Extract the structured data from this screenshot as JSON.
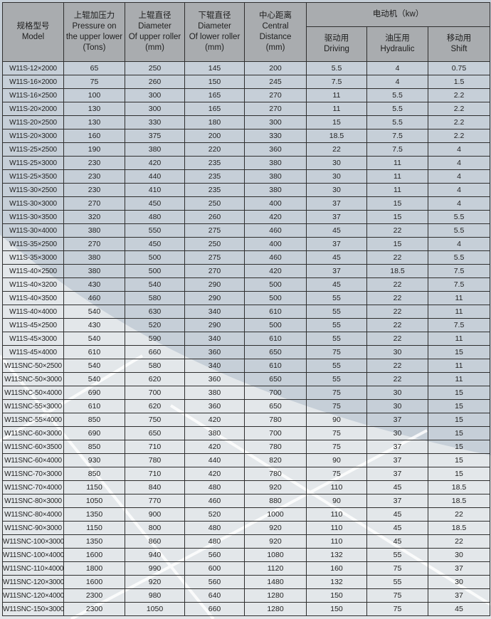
{
  "header": {
    "model": [
      "规格型号",
      "Model"
    ],
    "pressure": [
      "上辊加压力",
      "Pressure on",
      "the upper lower",
      "(Tons)"
    ],
    "upper": [
      "上辊直径",
      "Diameter",
      "Of upper roller",
      "(mm)"
    ],
    "lower": [
      "下辊直径",
      "Diameter",
      "Of lower roller",
      "(mm)"
    ],
    "center": [
      "中心距离",
      "Central",
      "Distance",
      "(mm)"
    ],
    "motor": "电动机（kw）",
    "driving": [
      "驱动用",
      "Driving"
    ],
    "hydraulic": [
      "油压用",
      "Hydraulic"
    ],
    "shift": [
      "移动用",
      "Shift"
    ]
  },
  "colors": {
    "header_bg": "#a9acaf",
    "body_bg": "#c6cfd8",
    "light_bg": "#e3e7ea",
    "border": "#2e2e2e"
  },
  "rows": [
    [
      "W11S-12×2000",
      "65",
      "250",
      "145",
      "200",
      "5.5",
      "4",
      "0.75"
    ],
    [
      "W11S-16×2000",
      "75",
      "260",
      "150",
      "245",
      "7.5",
      "4",
      "1.5"
    ],
    [
      "W11S-16×2500",
      "100",
      "300",
      "165",
      "270",
      "11",
      "5.5",
      "2.2"
    ],
    [
      "W11S-20×2000",
      "130",
      "300",
      "165",
      "270",
      "11",
      "5.5",
      "2.2"
    ],
    [
      "W11S-20×2500",
      "130",
      "330",
      "180",
      "300",
      "15",
      "5.5",
      "2.2"
    ],
    [
      "W11S-20×3000",
      "160",
      "375",
      "200",
      "330",
      "18.5",
      "7.5",
      "2.2"
    ],
    [
      "W11S-25×2500",
      "190",
      "380",
      "220",
      "360",
      "22",
      "7.5",
      "4"
    ],
    [
      "W11S-25×3000",
      "230",
      "420",
      "235",
      "380",
      "30",
      "11",
      "4"
    ],
    [
      "W11S-25×3500",
      "230",
      "440",
      "235",
      "380",
      "30",
      "11",
      "4"
    ],
    [
      "W11S-30×2500",
      "230",
      "410",
      "235",
      "380",
      "30",
      "11",
      "4"
    ],
    [
      "W11S-30×3000",
      "270",
      "450",
      "250",
      "400",
      "37",
      "15",
      "4"
    ],
    [
      "W11S-30×3500",
      "320",
      "480",
      "260",
      "420",
      "37",
      "15",
      "5.5"
    ],
    [
      "W11S-30×4000",
      "380",
      "550",
      "275",
      "460",
      "45",
      "22",
      "5.5"
    ],
    [
      "W11S-35×2500",
      "270",
      "450",
      "250",
      "400",
      "37",
      "15",
      "4"
    ],
    [
      "W11S-35×3000",
      "380",
      "500",
      "275",
      "460",
      "45",
      "22",
      "5.5"
    ],
    [
      "W11S-40×2500",
      "380",
      "500",
      "270",
      "420",
      "37",
      "18.5",
      "7.5"
    ],
    [
      "W11S-40×3200",
      "430",
      "540",
      "290",
      "500",
      "45",
      "22",
      "7.5"
    ],
    [
      "W11S-40×3500",
      "460",
      "580",
      "290",
      "500",
      "55",
      "22",
      "11"
    ],
    [
      "W11S-40×4000",
      "540",
      "630",
      "340",
      "610",
      "55",
      "22",
      "11"
    ],
    [
      "W11S-45×2500",
      "430",
      "520",
      "290",
      "500",
      "55",
      "22",
      "7.5"
    ],
    [
      "W11S-45×3000",
      "540",
      "590",
      "340",
      "610",
      "55",
      "22",
      "11"
    ],
    [
      "W11S-45×4000",
      "610",
      "660",
      "360",
      "650",
      "75",
      "30",
      "15"
    ],
    [
      "W11SNC-50×2500",
      "540",
      "580",
      "340",
      "610",
      "55",
      "22",
      "11"
    ],
    [
      "W11SNC-50×3000",
      "540",
      "620",
      "360",
      "650",
      "55",
      "22",
      "11"
    ],
    [
      "W11SNC-50×4000",
      "690",
      "700",
      "380",
      "700",
      "75",
      "30",
      "15"
    ],
    [
      "W11SNC-55×3000",
      "610",
      "620",
      "360",
      "650",
      "75",
      "30",
      "15"
    ],
    [
      "W11SNC-55×4000",
      "850",
      "750",
      "420",
      "780",
      "90",
      "37",
      "15"
    ],
    [
      "W11SNC-60×3000",
      "690",
      "650",
      "380",
      "700",
      "75",
      "30",
      "15"
    ],
    [
      "W11SNC-60×3500",
      "850",
      "710",
      "420",
      "780",
      "75",
      "37",
      "15"
    ],
    [
      "W11SNC-60×4000",
      "930",
      "780",
      "440",
      "820",
      "90",
      "37",
      "15"
    ],
    [
      "W11SNC-70×3000",
      "850",
      "710",
      "420",
      "780",
      "75",
      "37",
      "15"
    ],
    [
      "W11SNC-70×4000",
      "1150",
      "840",
      "480",
      "920",
      "110",
      "45",
      "18.5"
    ],
    [
      "W11SNC-80×3000",
      "1050",
      "770",
      "460",
      "880",
      "90",
      "37",
      "18.5"
    ],
    [
      "W11SNC-80×4000",
      "1350",
      "900",
      "520",
      "1000",
      "110",
      "45",
      "22"
    ],
    [
      "W11SNC-90×3000",
      "1150",
      "800",
      "480",
      "920",
      "110",
      "45",
      "18.5"
    ],
    [
      "W11SNC-100×3000",
      "1350",
      "860",
      "480",
      "920",
      "110",
      "45",
      "22"
    ],
    [
      "W11SNC-100×4000",
      "1600",
      "940",
      "560",
      "1080",
      "132",
      "55",
      "30"
    ],
    [
      "W11SNC-110×4000",
      "1800",
      "990",
      "600",
      "1120",
      "160",
      "75",
      "37"
    ],
    [
      "W11SNC-120×3000",
      "1600",
      "920",
      "560",
      "1480",
      "132",
      "55",
      "30"
    ],
    [
      "W11SNC-120×4000",
      "2300",
      "980",
      "640",
      "1280",
      "150",
      "75",
      "37"
    ],
    [
      "W11SNC-150×3000",
      "2300",
      "1050",
      "660",
      "1280",
      "150",
      "75",
      "45"
    ]
  ]
}
